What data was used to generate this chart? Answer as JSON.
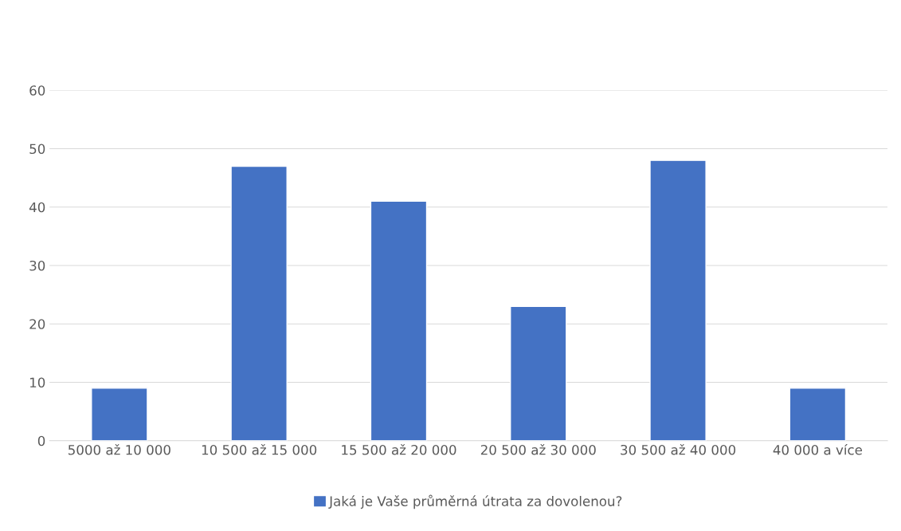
{
  "chart_data": {
    "type": "bar",
    "categories": [
      "5000 až 10 000",
      "10 500 až 15 000",
      "15 500 až 20 000",
      "20 500 až 30 000",
      "30 500 až 40 000",
      "40 000 a více"
    ],
    "series": [
      {
        "name": "Jaká je Vaše průměrná útrata za dovolenou?",
        "color": "#4472c4",
        "values": [
          9,
          47,
          41,
          23,
          48,
          9
        ]
      }
    ],
    "ylim": [
      0,
      60
    ],
    "yticks": [
      0,
      10,
      20,
      30,
      40,
      50,
      60
    ],
    "grid": "y",
    "legend": "bottom"
  }
}
